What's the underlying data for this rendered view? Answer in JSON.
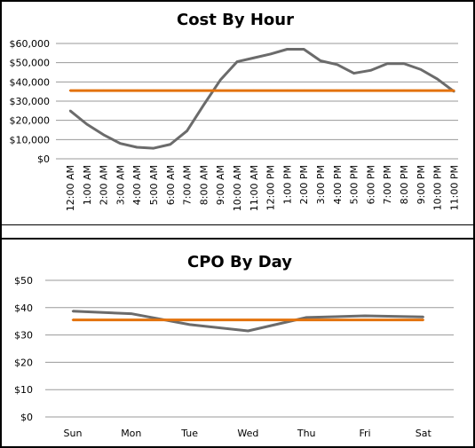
{
  "chart_data": [
    {
      "type": "line",
      "title": "Cost By Hour",
      "xlabel": "",
      "ylabel": "",
      "ylim": [
        0,
        60000
      ],
      "yticks": [
        "$0",
        "$10,000",
        "$20,000",
        "$30,000",
        "$40,000",
        "$50,000",
        "$60,000"
      ],
      "grid": true,
      "categories": [
        "12:00 AM",
        "1:00 AM",
        "2:00 AM",
        "3:00 AM",
        "4:00 AM",
        "5:00 AM",
        "6:00 AM",
        "7:00 AM",
        "8:00 AM",
        "9:00 AM",
        "10:00 AM",
        "11:00 AM",
        "12:00 PM",
        "1:00 PM",
        "2:00 PM",
        "3:00 PM",
        "4:00 PM",
        "5:00 PM",
        "6:00 PM",
        "7:00 PM",
        "8:00 PM",
        "9:00 PM",
        "10:00 PM",
        "11:00 PM"
      ],
      "series": [
        {
          "values": [
            25000,
            18000,
            12500,
            8000,
            6000,
            5500,
            7500,
            14500,
            28000,
            41000,
            50500,
            52500,
            54500,
            57000,
            57000,
            51000,
            49000,
            44500,
            46000,
            49500,
            49500,
            46500,
            41500,
            35000
          ],
          "color": "#6b6b6b"
        },
        {
          "values": [
            35500,
            35500,
            35500,
            35500,
            35500,
            35500,
            35500,
            35500,
            35500,
            35500,
            35500,
            35500,
            35500,
            35500,
            35500,
            35500,
            35500,
            35500,
            35500,
            35500,
            35500,
            35500,
            35500,
            35500
          ],
          "color": "#e3720c"
        }
      ]
    },
    {
      "type": "line",
      "title": "CPO By Day",
      "xlabel": "",
      "ylabel": "",
      "ylim": [
        0,
        50
      ],
      "yticks": [
        "$0",
        "$10",
        "$20",
        "$30",
        "$40",
        "$50"
      ],
      "grid": true,
      "categories": [
        "Sun",
        "Mon",
        "Tue",
        "Wed",
        "Thu",
        "Fri",
        "Sat"
      ],
      "series": [
        {
          "values": [
            38.7,
            37.8,
            33.8,
            31.5,
            36.4,
            37.0,
            36.6
          ],
          "color": "#6b6b6b"
        },
        {
          "values": [
            35.5,
            35.5,
            35.5,
            35.5,
            35.5,
            35.5,
            35.5
          ],
          "color": "#e3720c"
        }
      ]
    }
  ]
}
